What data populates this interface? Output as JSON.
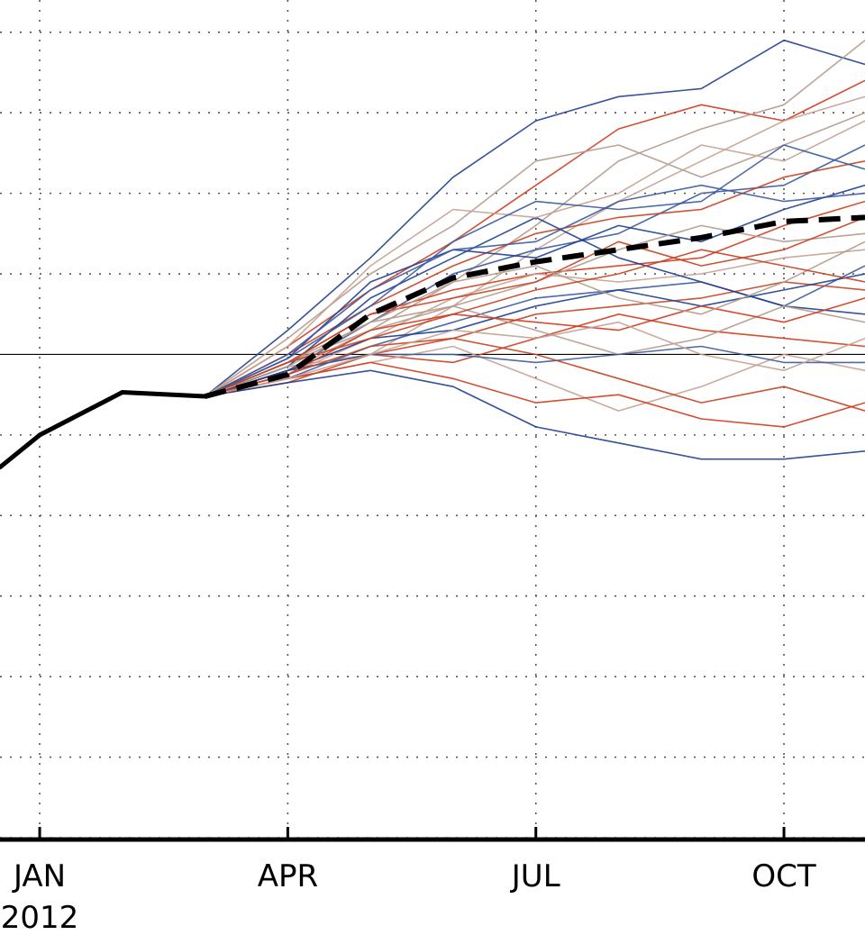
{
  "chart_data": {
    "type": "line",
    "title": "",
    "xlabel": "",
    "ylabel": "",
    "grid": true,
    "x_ticks": [
      {
        "x": 1.0,
        "label": "JAN"
      },
      {
        "x": 4.0,
        "label": "APR"
      },
      {
        "x": 7.0,
        "label": "JUL"
      },
      {
        "x": 10.0,
        "label": "OCT"
      }
    ],
    "year_label": {
      "x": 1.0,
      "label": "2012"
    },
    "xlim": [
      0.52,
      10.98
    ],
    "ylim": [
      -6,
      4.4
    ],
    "reference_line": 0,
    "colors": {
      "observed": "#000000",
      "ensemble_mean": "#000000",
      "members": [
        "#1f3f8f",
        "#d23a1e",
        "#b49a8c",
        "#c4a292",
        "#3a5aa0",
        "#c84020"
      ]
    },
    "observed": {
      "x": [
        0.52,
        1.0,
        2.0,
        3.0
      ],
      "y": [
        -1.4,
        -1.0,
        -0.47,
        -0.52
      ]
    },
    "ensemble_mean": {
      "x": [
        3.0,
        4.0,
        5.0,
        6.0,
        7.0,
        8.0,
        9.0,
        10.0,
        10.98
      ],
      "y": [
        -0.52,
        -0.25,
        0.5,
        0.95,
        1.15,
        1.3,
        1.45,
        1.65,
        1.7
      ]
    },
    "ensemble": [
      {
        "x": [
          3,
          4,
          5,
          6,
          7,
          8,
          9,
          10,
          10.98
        ],
        "y": [
          -0.52,
          0.3,
          1.2,
          2.2,
          2.9,
          3.2,
          3.3,
          3.9,
          3.6
        ]
      },
      {
        "x": [
          3,
          4,
          5,
          6,
          7,
          8,
          9,
          10,
          10.98
        ],
        "y": [
          -0.52,
          0.1,
          0.8,
          1.4,
          2.1,
          2.8,
          3.1,
          2.9,
          3.4
        ]
      },
      {
        "x": [
          3,
          4,
          5,
          6,
          7,
          8,
          9,
          10,
          10.98
        ],
        "y": [
          -0.52,
          -0.1,
          0.3,
          0.9,
          1.6,
          2.4,
          2.8,
          3.1,
          3.9
        ]
      },
      {
        "x": [
          3,
          4,
          5,
          6,
          7,
          8,
          9,
          10,
          10.98
        ],
        "y": [
          -0.52,
          -0.15,
          0.0,
          0.6,
          1.3,
          1.9,
          2.4,
          2.9,
          3.2
        ]
      },
      {
        "x": [
          3,
          4,
          5,
          6,
          7,
          8,
          9,
          10,
          10.98
        ],
        "y": [
          -0.52,
          -0.2,
          0.4,
          1.0,
          1.3,
          1.5,
          2.0,
          2.1,
          2.6
        ]
      },
      {
        "x": [
          3,
          4,
          5,
          6,
          7,
          8,
          9,
          10,
          10.98
        ],
        "y": [
          -0.52,
          0.0,
          0.6,
          1.1,
          1.5,
          1.7,
          1.8,
          2.2,
          2.4
        ]
      },
      {
        "x": [
          3,
          4,
          5,
          6,
          7,
          8,
          9,
          10,
          10.98
        ],
        "y": [
          -0.52,
          -0.05,
          0.9,
          1.3,
          1.2,
          1.6,
          1.4,
          1.8,
          2.1
        ]
      },
      {
        "x": [
          3,
          4,
          5,
          6,
          7,
          8,
          9,
          10,
          10.98
        ],
        "y": [
          -0.52,
          -0.1,
          0.5,
          0.8,
          1.0,
          1.1,
          1.2,
          1.6,
          1.9
        ]
      },
      {
        "x": [
          3,
          4,
          5,
          6,
          7,
          8,
          9,
          10,
          10.98
        ],
        "y": [
          -0.52,
          -0.2,
          0.3,
          0.6,
          0.9,
          1.3,
          1.6,
          1.4,
          1.5
        ]
      },
      {
        "x": [
          3,
          4,
          5,
          6,
          7,
          8,
          9,
          10,
          10.98
        ],
        "y": [
          -0.52,
          -0.25,
          0.2,
          0.7,
          1.0,
          0.9,
          1.0,
          1.2,
          1.3
        ]
      },
      {
        "x": [
          3,
          4,
          5,
          6,
          7,
          8,
          9,
          10,
          10.98
        ],
        "y": [
          -0.52,
          -0.3,
          0.1,
          0.4,
          0.7,
          0.8,
          0.9,
          0.6,
          1.1
        ]
      },
      {
        "x": [
          3,
          4,
          5,
          6,
          7,
          8,
          9,
          10,
          10.98
        ],
        "y": [
          -0.52,
          -0.35,
          0.0,
          0.2,
          0.5,
          0.6,
          0.7,
          0.9,
          0.8
        ]
      },
      {
        "x": [
          3,
          4,
          5,
          6,
          7,
          8,
          9,
          10,
          10.98
        ],
        "y": [
          -0.52,
          -0.15,
          0.7,
          1.2,
          1.7,
          1.2,
          0.9,
          0.6,
          0.5
        ]
      },
      {
        "x": [
          3,
          4,
          5,
          6,
          7,
          8,
          9,
          10,
          10.98
        ],
        "y": [
          -0.52,
          -0.2,
          0.0,
          -0.1,
          0.2,
          0.5,
          0.3,
          0.2,
          0.1
        ]
      },
      {
        "x": [
          3,
          4,
          5,
          6,
          7,
          8,
          9,
          10,
          10.98
        ],
        "y": [
          -0.52,
          -0.1,
          0.4,
          0.6,
          0.3,
          0.0,
          0.2,
          0.6,
          0.4
        ]
      },
      {
        "x": [
          3,
          4,
          5,
          6,
          7,
          8,
          9,
          10,
          10.98
        ],
        "y": [
          -0.52,
          -0.3,
          -0.1,
          0.1,
          -0.3,
          -0.7,
          -0.4,
          0.0,
          -0.2
        ]
      },
      {
        "x": [
          3,
          4,
          5,
          6,
          7,
          8,
          9,
          10,
          10.98
        ],
        "y": [
          -0.52,
          -0.2,
          0.0,
          0.0,
          -0.1,
          0.0,
          0.1,
          -0.1,
          -0.1
        ]
      },
      {
        "x": [
          3,
          4,
          5,
          6,
          7,
          8,
          9,
          10,
          10.98
        ],
        "y": [
          -0.52,
          -0.25,
          0.1,
          0.2,
          0.0,
          -0.3,
          -0.6,
          -0.4,
          -0.7
        ]
      },
      {
        "x": [
          3,
          4,
          5,
          6,
          7,
          8,
          9,
          10,
          10.98
        ],
        "y": [
          -0.52,
          -0.35,
          -0.2,
          -0.4,
          -0.9,
          -1.1,
          -1.3,
          -1.3,
          -1.2
        ]
      },
      {
        "x": [
          3,
          4,
          5,
          6,
          7,
          8,
          9,
          10,
          10.98
        ],
        "y": [
          -0.52,
          -0.3,
          -0.1,
          -0.3,
          -0.6,
          -0.5,
          -0.8,
          -0.9,
          -0.6
        ]
      },
      {
        "x": [
          3,
          4,
          5,
          6,
          7,
          8,
          9,
          10,
          10.98
        ],
        "y": [
          -0.52,
          0.2,
          1.0,
          1.6,
          2.4,
          2.6,
          2.2,
          2.6,
          3.0
        ]
      },
      {
        "x": [
          3,
          4,
          5,
          6,
          7,
          8,
          9,
          10,
          10.98
        ],
        "y": [
          -0.52,
          0.1,
          1.1,
          1.8,
          1.7,
          2.0,
          2.6,
          2.4,
          2.9
        ]
      },
      {
        "x": [
          3,
          4,
          5,
          6,
          7,
          8,
          9,
          10,
          10.98
        ],
        "y": [
          -0.52,
          -0.05,
          0.6,
          1.4,
          1.9,
          1.8,
          1.9,
          2.6,
          2.3
        ]
      },
      {
        "x": [
          3,
          4,
          5,
          6,
          7,
          8,
          9,
          10,
          10.98
        ],
        "y": [
          -0.52,
          -0.1,
          0.5,
          0.7,
          0.9,
          1.4,
          1.1,
          1.3,
          1.7
        ]
      },
      {
        "x": [
          3,
          4,
          5,
          6,
          7,
          8,
          9,
          10,
          10.98
        ],
        "y": [
          -0.52,
          -0.2,
          0.2,
          0.3,
          0.6,
          0.8,
          0.6,
          0.8,
          1.0
        ]
      },
      {
        "x": [
          3,
          4,
          5,
          6,
          7,
          8,
          9,
          10,
          10.98
        ],
        "y": [
          -0.52,
          -0.25,
          0.3,
          0.5,
          0.4,
          0.3,
          0.6,
          0.4,
          0.7
        ]
      },
      {
        "x": [
          3,
          4,
          5,
          6,
          7,
          8,
          9,
          10,
          10.98
        ],
        "y": [
          -0.52,
          -0.15,
          0.4,
          0.9,
          1.1,
          0.7,
          0.5,
          0.9,
          1.4
        ]
      },
      {
        "x": [
          3,
          4,
          5,
          6,
          7,
          8,
          9,
          10,
          10.98
        ],
        "y": [
          -0.52,
          -0.3,
          0.0,
          0.3,
          0.2,
          0.4,
          0.0,
          -0.2,
          0.2
        ]
      },
      {
        "x": [
          3,
          4,
          5,
          6,
          7,
          8,
          9,
          10,
          10.98
        ],
        "y": [
          -0.52,
          0.0,
          0.8,
          1.3,
          1.4,
          1.9,
          2.1,
          1.9,
          2.0
        ]
      },
      {
        "x": [
          3,
          4,
          5,
          6,
          7,
          8,
          9,
          10,
          10.98
        ],
        "y": [
          -0.52,
          -0.1,
          0.2,
          0.5,
          0.8,
          1.0,
          1.3,
          1.1,
          0.9
        ]
      }
    ]
  }
}
